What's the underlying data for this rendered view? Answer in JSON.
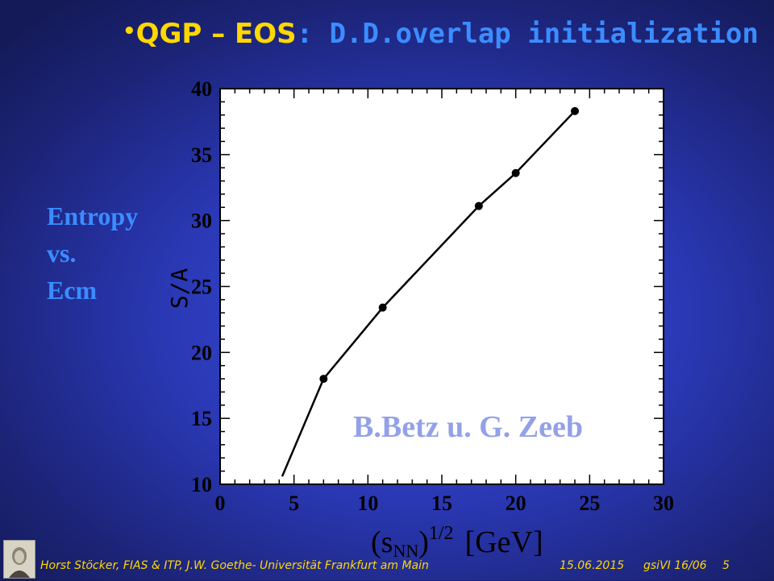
{
  "slide": {
    "title_bullet": "•",
    "title_part1": "QGP – EOS",
    "title_sep": ":",
    "title_part2": " D.D.overlap initialization",
    "side_label": [
      "Entropy",
      "vs.",
      "Ecm"
    ],
    "credit": "B.Betz u. G. Zeeb"
  },
  "footer": {
    "author": "Horst Stöcker, FIAS & ITP, J.W. Goethe- Universität Frankfurt am Main",
    "date": "15.06.2015",
    "ref": "gsiVI 16/06",
    "page": "5",
    "logo_icon": "goethe-portrait-logo"
  },
  "chart_data": {
    "type": "line",
    "xlabel_base": "(s",
    "xlabel_sub": "NN",
    "xlabel_close": ")",
    "xlabel_sup": "1/2",
    "xlabel_unit": "[GeV]",
    "ylabel": "S/A",
    "xlim": [
      0,
      30
    ],
    "ylim": [
      10,
      40
    ],
    "xticks": [
      0,
      5,
      10,
      15,
      20,
      25,
      30
    ],
    "yticks": [
      10,
      15,
      20,
      25,
      30,
      35,
      40
    ],
    "grid": false,
    "series": [
      {
        "line_x": [
          4.2,
          7.0,
          11.0,
          17.5,
          20.0,
          24.0
        ],
        "line_y": [
          10.6,
          18.0,
          23.4,
          31.1,
          33.6,
          38.3
        ],
        "points_x": [
          7.0,
          11.0,
          17.5,
          20.0,
          24.0
        ],
        "points_y": [
          18.0,
          23.4,
          31.1,
          33.6,
          38.3
        ]
      }
    ],
    "colors": {
      "plot_bg": "#ffffff",
      "line": "#000000"
    }
  }
}
